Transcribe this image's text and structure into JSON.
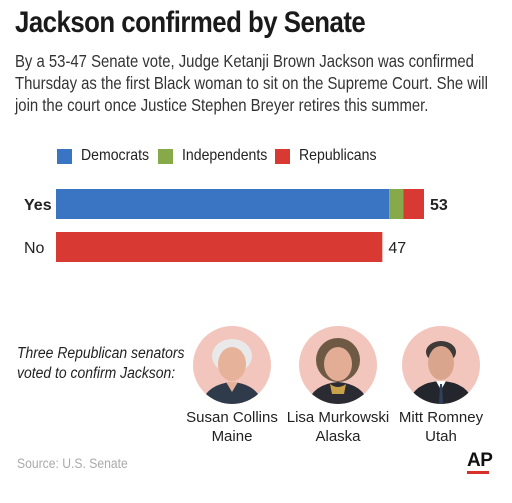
{
  "header": {
    "title": "Jackson confirmed by Senate",
    "subtitle": "By a 53-47 Senate vote, Judge Ketanji Brown Jackson was confirmed Thursday as the first Black woman to sit on the Supreme Court. She will join the court once Justice Stephen Breyer retires this summer."
  },
  "legend": [
    {
      "label": "Democrats",
      "color": "#3a75c4"
    },
    {
      "label": "Independents",
      "color": "#86a94a"
    },
    {
      "label": "Republicans",
      "color": "#d83a33"
    }
  ],
  "chart_data": {
    "type": "bar",
    "orientation": "horizontal",
    "stacked": true,
    "categories": [
      "Yes",
      "No"
    ],
    "series": [
      {
        "name": "Democrats",
        "color": "#3a75c4",
        "values": [
          48,
          0
        ]
      },
      {
        "name": "Independents",
        "color": "#86a94a",
        "values": [
          2,
          0
        ]
      },
      {
        "name": "Republicans",
        "color": "#d83a33",
        "values": [
          3,
          47
        ]
      }
    ],
    "totals": [
      "53",
      "47"
    ],
    "xlim": [
      0,
      53
    ],
    "grid": false,
    "legend_position": "top"
  },
  "senators": {
    "intro": "Three Republican senators voted to confirm Jackson:",
    "items": [
      {
        "name": "Susan Collins",
        "state": "Maine",
        "portrait_icon": "senator-portrait-icon"
      },
      {
        "name": "Lisa Murkowski",
        "state": "Alaska",
        "portrait_icon": "senator-portrait-icon"
      },
      {
        "name": "Mitt Romney",
        "state": "Utah",
        "portrait_icon": "senator-portrait-icon"
      }
    ]
  },
  "footer": {
    "source": "Source: U.S. Senate",
    "logo": "AP"
  }
}
